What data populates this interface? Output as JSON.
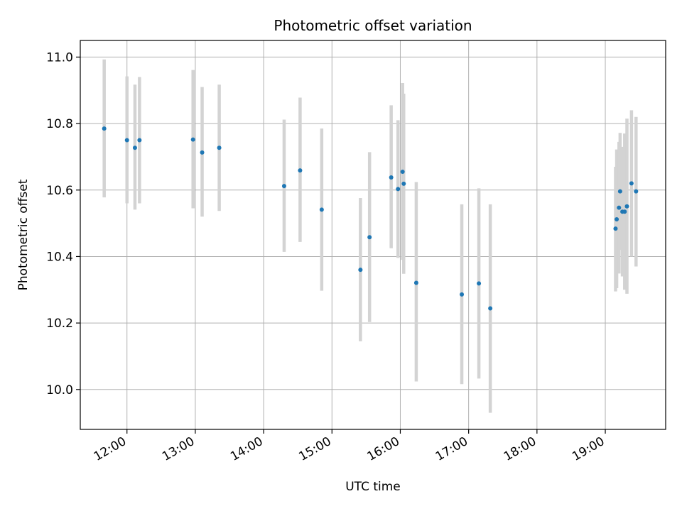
{
  "chart_data": {
    "type": "scatter",
    "title": "Photometric offset variation",
    "xlabel": "UTC time",
    "ylabel": "Photometric offset",
    "xlim": [
      "11:19",
      "19:53"
    ],
    "ylim": [
      9.88,
      11.05
    ],
    "xticks": [
      "12:00",
      "13:00",
      "14:00",
      "15:00",
      "16:00",
      "17:00",
      "18:00",
      "19:00"
    ],
    "yticks": [
      "10.0",
      "10.2",
      "10.4",
      "10.6",
      "10.8",
      "11.0"
    ],
    "grid": true,
    "colors": {
      "marker": "#1f77b4",
      "errorbar": "#d3d3d3",
      "grid": "#b0b0b0",
      "axis": "#000000"
    },
    "points": [
      {
        "x": "11:40",
        "y": 10.785,
        "ylow": 10.578,
        "yhigh": 10.993
      },
      {
        "x": "12:00",
        "y": 10.75,
        "ylow": 10.56,
        "yhigh": 10.942
      },
      {
        "x": "12:07",
        "y": 10.727,
        "ylow": 10.541,
        "yhigh": 10.917
      },
      {
        "x": "12:11",
        "y": 10.75,
        "ylow": 10.56,
        "yhigh": 10.94
      },
      {
        "x": "12:58",
        "y": 10.752,
        "ylow": 10.545,
        "yhigh": 10.961
      },
      {
        "x": "13:06",
        "y": 10.713,
        "ylow": 10.52,
        "yhigh": 10.91
      },
      {
        "x": "13:21",
        "y": 10.727,
        "ylow": 10.537,
        "yhigh": 10.917
      },
      {
        "x": "14:18",
        "y": 10.612,
        "ylow": 10.414,
        "yhigh": 10.812
      },
      {
        "x": "14:32",
        "y": 10.659,
        "ylow": 10.444,
        "yhigh": 10.878
      },
      {
        "x": "14:51",
        "y": 10.541,
        "ylow": 10.297,
        "yhigh": 10.785
      },
      {
        "x": "15:25",
        "y": 10.36,
        "ylow": 10.145,
        "yhigh": 10.576
      },
      {
        "x": "15:33",
        "y": 10.458,
        "ylow": 10.203,
        "yhigh": 10.714
      },
      {
        "x": "15:52",
        "y": 10.638,
        "ylow": 10.425,
        "yhigh": 10.855
      },
      {
        "x": "15:58",
        "y": 10.603,
        "ylow": 10.396,
        "yhigh": 10.81
      },
      {
        "x": "16:02",
        "y": 10.655,
        "ylow": 10.39,
        "yhigh": 10.922
      },
      {
        "x": "16:03",
        "y": 10.619,
        "ylow": 10.348,
        "yhigh": 10.89
      },
      {
        "x": "16:14",
        "y": 10.321,
        "ylow": 10.024,
        "yhigh": 10.624
      },
      {
        "x": "16:54",
        "y": 10.286,
        "ylow": 10.016,
        "yhigh": 10.557
      },
      {
        "x": "17:09",
        "y": 10.319,
        "ylow": 10.033,
        "yhigh": 10.605
      },
      {
        "x": "17:19",
        "y": 10.244,
        "ylow": 9.93,
        "yhigh": 10.557
      },
      {
        "x": "19:09",
        "y": 10.484,
        "ylow": 10.295,
        "yhigh": 10.67
      },
      {
        "x": "19:10",
        "y": 10.512,
        "ylow": 10.305,
        "yhigh": 10.722
      },
      {
        "x": "19:12",
        "y": 10.547,
        "ylow": 10.349,
        "yhigh": 10.745
      },
      {
        "x": "19:13",
        "y": 10.596,
        "ylow": 10.42,
        "yhigh": 10.772
      },
      {
        "x": "19:15",
        "y": 10.535,
        "ylow": 10.34,
        "yhigh": 10.73
      },
      {
        "x": "19:17",
        "y": 10.535,
        "ylow": 10.3,
        "yhigh": 10.77
      },
      {
        "x": "19:19",
        "y": 10.551,
        "ylow": 10.288,
        "yhigh": 10.815
      },
      {
        "x": "19:23",
        "y": 10.62,
        "ylow": 10.4,
        "yhigh": 10.84
      },
      {
        "x": "19:27",
        "y": 10.596,
        "ylow": 10.37,
        "yhigh": 10.82
      }
    ]
  }
}
